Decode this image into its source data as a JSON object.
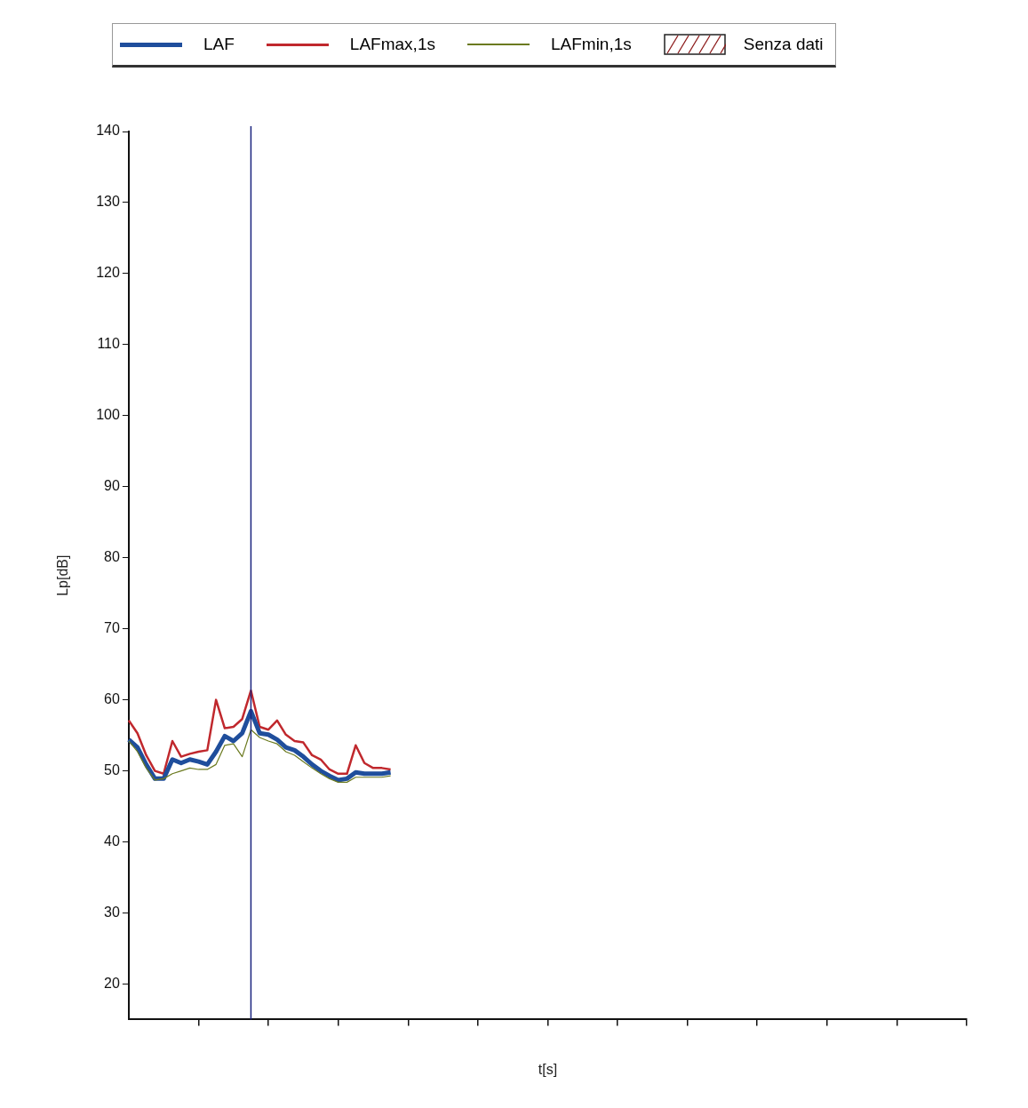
{
  "chart_data": {
    "type": "line",
    "xlabel": "t[s]",
    "ylabel": "Lp[dB]",
    "legend": "top",
    "marker": "none",
    "grid": false,
    "tick_labels": "y",
    "ylim": [
      15,
      140
    ],
    "yticks": [
      20,
      30,
      40,
      50,
      60,
      70,
      80,
      90,
      100,
      110,
      120,
      130,
      140
    ],
    "categories": [
      null,
      null,
      null,
      null,
      null,
      null,
      null,
      null,
      null,
      null,
      null,
      null,
      null,
      null,
      null,
      null,
      null,
      null,
      null,
      null,
      null,
      null,
      null,
      null,
      null,
      null,
      null,
      null,
      null,
      null,
      null,
      null,
      null,
      null,
      null,
      null,
      null,
      null,
      null,
      null,
      null,
      null,
      null,
      null,
      null,
      null,
      null,
      null,
      null,
      null,
      null,
      null,
      null,
      null,
      null,
      null,
      null,
      null,
      null,
      null,
      null,
      null,
      null,
      null,
      null,
      null,
      null,
      null,
      null,
      null,
      null,
      null,
      null,
      null,
      null,
      null,
      null,
      null,
      null,
      null,
      null,
      null,
      null,
      null,
      null,
      null,
      null,
      null,
      null,
      null,
      null,
      null,
      null,
      null,
      null,
      null,
      null
    ],
    "series": [
      {
        "name": "LAFmin,1s",
        "color": "#6b7a1f",
        "values": [
          54.2,
          52.7,
          50.4,
          48.7,
          48.9,
          49.6,
          50,
          50.4,
          50.2,
          50.2,
          50.9,
          53.6,
          53.8,
          52,
          55.8,
          54.7,
          54.2,
          53.8,
          52.7,
          52.2,
          51.3,
          50.4,
          49.6,
          48.9,
          48.4,
          48.4,
          49.1,
          49.1,
          49.1,
          49.1,
          49.3,
          null,
          null,
          null,
          null,
          null,
          null,
          null,
          null,
          null,
          null,
          null,
          null,
          null,
          null,
          null,
          null,
          null,
          null,
          null,
          null,
          null,
          null,
          null,
          null,
          null,
          null,
          null,
          null,
          null,
          null,
          null,
          null,
          null,
          null,
          null,
          null,
          null,
          null,
          null,
          null,
          null,
          null,
          null,
          null,
          null,
          null,
          null,
          null,
          null,
          null,
          null,
          null,
          null,
          null,
          null,
          null,
          null,
          null,
          null,
          null,
          null,
          null,
          null,
          null,
          null,
          null
        ]
      },
      {
        "name": "LAF",
        "color": "#1f4e9c",
        "values": [
          54.4,
          53.3,
          50.9,
          48.9,
          48.9,
          51.6,
          51.1,
          51.6,
          51.3,
          50.9,
          52.7,
          54.9,
          54.2,
          55.3,
          58.4,
          55.3,
          55.1,
          54.4,
          53.3,
          52.9,
          52,
          50.9,
          50,
          49.3,
          48.7,
          48.9,
          49.8,
          49.6,
          49.6,
          49.6,
          49.8,
          null,
          null,
          null,
          null,
          null,
          null,
          null,
          null,
          null,
          null,
          null,
          null,
          null,
          null,
          null,
          null,
          null,
          null,
          null,
          null,
          null,
          null,
          null,
          null,
          null,
          null,
          null,
          null,
          null,
          null,
          null,
          null,
          null,
          null,
          null,
          null,
          null,
          null,
          null,
          null,
          null,
          null,
          null,
          null,
          null,
          null,
          null,
          null,
          null,
          null,
          null,
          null,
          null,
          null,
          null,
          null,
          null,
          null,
          null,
          null,
          null,
          null,
          null,
          null,
          null,
          null
        ]
      },
      {
        "name": "LAFmax,1s",
        "color": "#c0282d",
        "values": [
          57.1,
          55.3,
          52.2,
          50,
          49.6,
          54.2,
          52,
          52.4,
          52.7,
          52.9,
          60,
          56,
          56.2,
          57.3,
          61.3,
          56.2,
          55.8,
          57.1,
          55.1,
          54.2,
          54,
          52.2,
          51.6,
          50.2,
          49.6,
          49.6,
          53.6,
          51.1,
          50.4,
          50.4,
          50.2,
          null,
          null,
          null,
          null,
          null,
          null,
          null,
          null,
          null,
          null,
          null,
          null,
          null,
          null,
          null,
          null,
          null,
          null,
          null,
          null,
          null,
          null,
          null,
          null,
          null,
          null,
          null,
          null,
          null,
          null,
          null,
          null,
          null,
          null,
          null,
          null,
          null,
          null,
          null,
          null,
          null,
          null,
          null,
          null,
          null,
          null,
          null,
          null,
          null,
          null,
          null,
          null,
          null,
          null,
          null,
          null,
          null,
          null,
          null,
          null,
          null,
          null,
          null,
          null,
          null,
          null
        ]
      }
    ],
    "annotations": [
      "Senza dati"
    ]
  }
}
